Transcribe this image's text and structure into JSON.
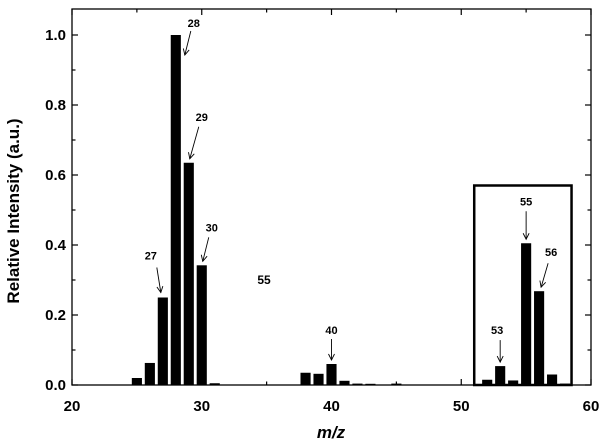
{
  "chart_data": {
    "type": "bar",
    "xlabel": "m/z",
    "ylabel": "Relative Intensity (a.u.)",
    "xlim": [
      20,
      60
    ],
    "ylim": [
      0,
      1.0
    ],
    "x_ticks": [
      "20",
      "30",
      "40",
      "50",
      "60"
    ],
    "y_ticks": [
      "0.0",
      "0.2",
      "0.4",
      "0.6",
      "0.8",
      "1.0"
    ],
    "bar_color": "#000000",
    "points": [
      {
        "x": 25,
        "y": 0.02
      },
      {
        "x": 26,
        "y": 0.063
      },
      {
        "x": 27,
        "y": 0.25
      },
      {
        "x": 28,
        "y": 1.0
      },
      {
        "x": 29,
        "y": 0.635
      },
      {
        "x": 30,
        "y": 0.342
      },
      {
        "x": 31,
        "y": 0.005
      },
      {
        "x": 38,
        "y": 0.035
      },
      {
        "x": 39,
        "y": 0.032
      },
      {
        "x": 40,
        "y": 0.06
      },
      {
        "x": 41,
        "y": 0.012
      },
      {
        "x": 42,
        "y": 0.004
      },
      {
        "x": 43,
        "y": 0.003
      },
      {
        "x": 45,
        "y": 0.004
      },
      {
        "x": 52,
        "y": 0.015
      },
      {
        "x": 53,
        "y": 0.054
      },
      {
        "x": 54,
        "y": 0.013
      },
      {
        "x": 55,
        "y": 0.405
      },
      {
        "x": 56,
        "y": 0.268
      },
      {
        "x": 57,
        "y": 0.03
      },
      {
        "x": 58,
        "y": 0.004
      }
    ],
    "annotations": [
      {
        "label": "27",
        "x": 27,
        "y": 0.25,
        "arrow": true
      },
      {
        "label": "28",
        "x": 28,
        "y": 1.0,
        "arrow": true
      },
      {
        "label": "29",
        "x": 29,
        "y": 0.635,
        "arrow": true
      },
      {
        "label": "30",
        "x": 30,
        "y": 0.342,
        "arrow": true
      },
      {
        "label": "40",
        "x": 40,
        "y": 0.06,
        "arrow": true
      },
      {
        "label": "53",
        "x": 53,
        "y": 0.054,
        "arrow": true
      },
      {
        "label": "55",
        "x": 55,
        "y": 0.405,
        "arrow": true
      },
      {
        "label": "56",
        "x": 56,
        "y": 0.268,
        "arrow": true
      }
    ],
    "stray_label": "55",
    "highlight_box": {
      "x_range": [
        51,
        58.5
      ],
      "y_range": [
        0,
        0.57
      ]
    }
  }
}
